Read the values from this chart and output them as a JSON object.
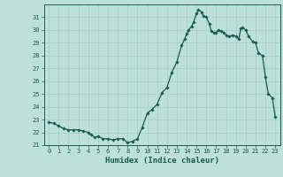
{
  "xlabel": "Humidex (Indice chaleur)",
  "ylabel": "",
  "xlim": [
    -0.5,
    23.5
  ],
  "ylim": [
    21,
    32
  ],
  "yticks": [
    21,
    22,
    23,
    24,
    25,
    26,
    27,
    28,
    29,
    30,
    31
  ],
  "xticks": [
    0,
    1,
    2,
    3,
    4,
    5,
    6,
    7,
    8,
    9,
    10,
    11,
    12,
    13,
    14,
    15,
    16,
    17,
    18,
    19,
    20,
    21,
    22,
    23
  ],
  "bg_color": "#bde0d8",
  "grid_color": "#9ecfc7",
  "line_color": "#1a5c50",
  "marker_color": "#1a5c50",
  "x": [
    0,
    0.5,
    1,
    1.5,
    2,
    2.5,
    3,
    3.5,
    4,
    4.3,
    4.7,
    5,
    5.5,
    6,
    6.5,
    7,
    7.5,
    8,
    8.5,
    9,
    9.5,
    10,
    10.5,
    11,
    11.5,
    12,
    12.5,
    13,
    13.5,
    13.8,
    14,
    14.2,
    14.5,
    14.7,
    15,
    15.2,
    15.5,
    15.7,
    16,
    16.3,
    16.5,
    16.8,
    17,
    17.2,
    17.5,
    17.8,
    18,
    18.3,
    18.7,
    19,
    19.3,
    19.5,
    19.7,
    20,
    20.3,
    20.7,
    21,
    21.3,
    21.7,
    22,
    22.3,
    22.7,
    23
  ],
  "y": [
    22.8,
    22.7,
    22.5,
    22.3,
    22.2,
    22.2,
    22.2,
    22.1,
    22.0,
    21.8,
    21.6,
    21.7,
    21.5,
    21.5,
    21.4,
    21.5,
    21.5,
    21.2,
    21.3,
    21.5,
    22.4,
    23.5,
    23.8,
    24.2,
    25.1,
    25.5,
    26.7,
    27.5,
    28.8,
    29.3,
    29.7,
    30.0,
    30.3,
    30.6,
    31.3,
    31.6,
    31.4,
    31.1,
    31.0,
    30.5,
    29.9,
    29.8,
    29.8,
    30.0,
    29.9,
    29.8,
    29.6,
    29.5,
    29.6,
    29.5,
    29.3,
    30.1,
    30.2,
    30.0,
    29.5,
    29.1,
    29.0,
    28.2,
    28.0,
    26.3,
    25.0,
    24.7,
    23.2
  ]
}
